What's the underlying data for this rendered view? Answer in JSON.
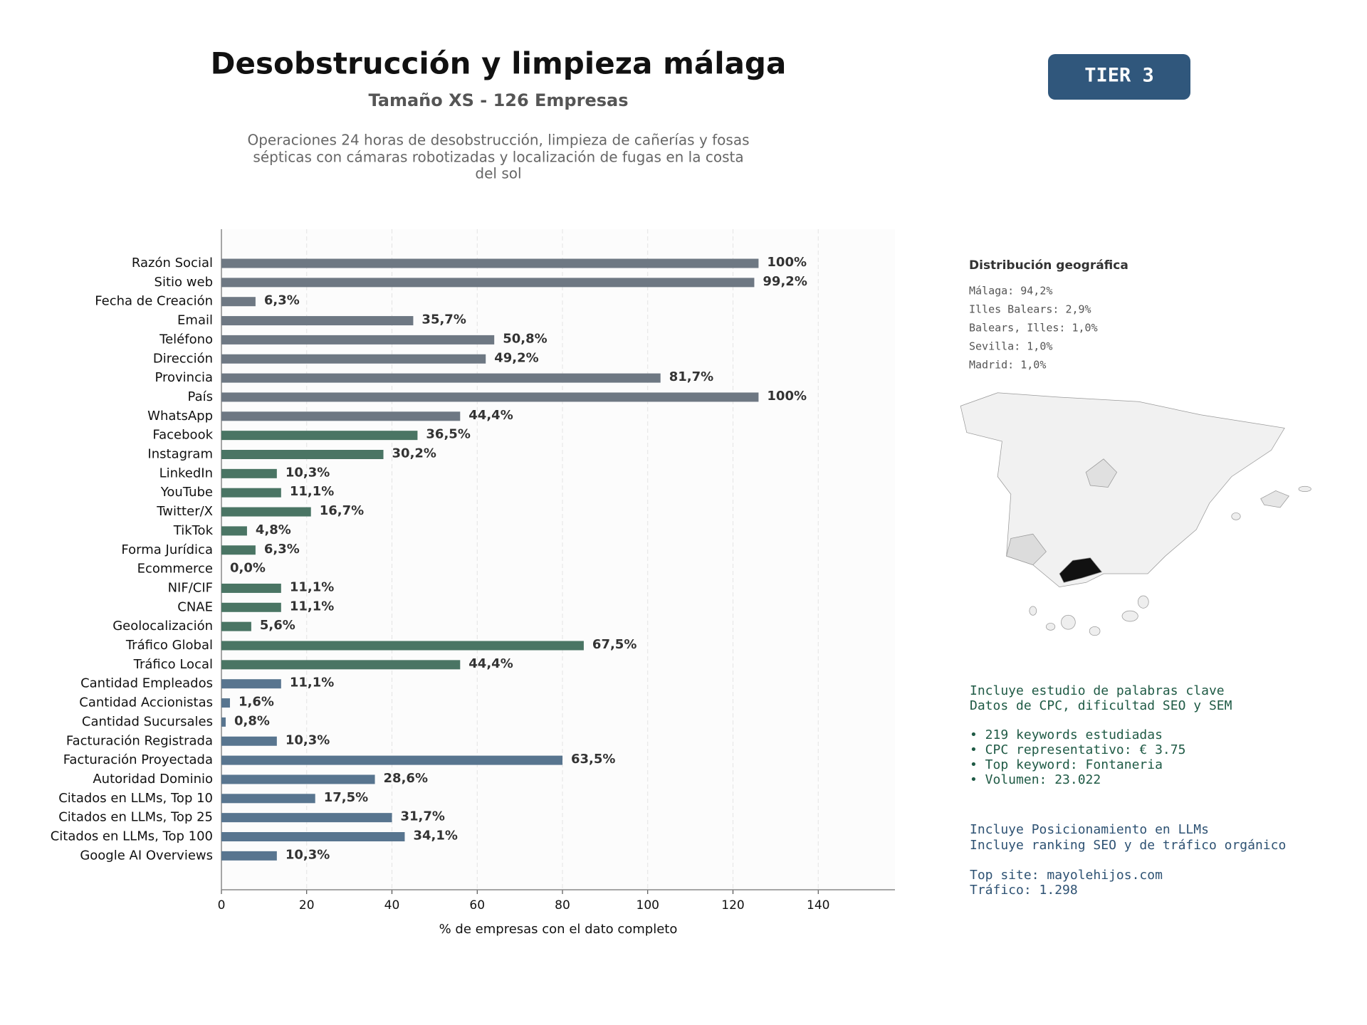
{
  "chart_data": {
    "type": "barh",
    "title": "Desobstrucción y limpieza málaga",
    "subtitle": "Tamaño XS - 126 Empresas",
    "description": [
      "Operaciones 24 horas de desobstrucción, limpieza de cañerías y fosas",
      "sépticas con cámaras robotizadas y localización de fugas en la costa",
      "del sol"
    ],
    "xlabel": "% de empresas con el dato completo",
    "categories": [
      "Razón Social",
      "Sitio web",
      "Fecha de Creación",
      "Email",
      "Teléfono",
      "Dirección",
      "Provincia",
      "País",
      "WhatsApp",
      "Facebook",
      "Instagram",
      "LinkedIn",
      "YouTube",
      "Twitter/X",
      "TikTok",
      "Forma Jurídica",
      "Ecommerce",
      "NIF/CIF",
      "CNAE",
      "Geolocalización",
      "Tráfico Global",
      "Tráfico Local",
      "Cantidad Empleados",
      "Cantidad Accionistas",
      "Cantidad Sucursales",
      "Facturación Registrada",
      "Facturación Proyectada",
      "Autoridad Dominio",
      "Citados en LLMs, Top 10",
      "Citados en LLMs, Top 25",
      "Citados en LLMs, Top 100",
      "Google AI Overviews"
    ],
    "values": [
      126,
      125,
      8,
      45,
      64,
      62,
      103,
      126,
      56,
      46,
      38,
      13,
      14,
      21,
      6,
      8,
      0,
      14,
      14,
      7,
      85,
      56,
      14,
      2,
      1,
      13,
      80,
      36,
      22,
      40,
      43,
      13
    ],
    "value_labels": [
      "100%",
      "99,2%",
      "6,3%",
      "35,7%",
      "50,8%",
      "49,2%",
      "81,7%",
      "100%",
      "44,4%",
      "36,5%",
      "30,2%",
      "10,3%",
      "11,1%",
      "16,7%",
      "4,8%",
      "6,3%",
      "0,0%",
      "11,1%",
      "11,1%",
      "5,6%",
      "67,5%",
      "44,4%",
      "11,1%",
      "1,6%",
      "0,8%",
      "10,3%",
      "63,5%",
      "28,6%",
      "17,5%",
      "31,7%",
      "34,1%",
      "10,3%"
    ],
    "colors": [
      "#6e7883",
      "#6e7883",
      "#6e7883",
      "#6e7883",
      "#6e7883",
      "#6e7883",
      "#6e7883",
      "#6e7883",
      "#6e7883",
      "#4a7564",
      "#4a7564",
      "#4a7564",
      "#4a7564",
      "#4a7564",
      "#4a7564",
      "#4a7564",
      "#4a7564",
      "#4a7564",
      "#4a7564",
      "#4a7564",
      "#4a7564",
      "#4a7564",
      "#58758f",
      "#58758f",
      "#58758f",
      "#58758f",
      "#58758f",
      "#58758f",
      "#58758f",
      "#58758f",
      "#58758f",
      "#58758f"
    ],
    "xlim": [
      0,
      158
    ],
    "xticks": [
      0,
      20,
      40,
      60,
      80,
      100,
      120,
      140
    ],
    "grid": true
  },
  "panel": {
    "tier": "TIER 3",
    "geo_title": "Distribución geográfica",
    "geo_items": [
      "Málaga: 94,2%",
      "Illes Balears: 2,9%",
      "Balears, Illes: 1,0%",
      "Sevilla: 1,0%",
      "Madrid: 1,0%"
    ],
    "keywords": [
      "Incluye estudio de palabras clave",
      "Datos de CPC, dificultad SEO y SEM"
    ],
    "keyword_items": [
      "• 219 keywords estudiadas",
      "• CPC representativo: € 3.75",
      "• Top keyword: Fontaneria",
      "• Volumen: 23.022"
    ],
    "llm": [
      "Incluye Posicionamiento en LLMs",
      "Incluye ranking SEO y de tráfico orgánico"
    ],
    "site": [
      "Top site: mayolehijos.com",
      "Tráfico: 1.298"
    ]
  }
}
